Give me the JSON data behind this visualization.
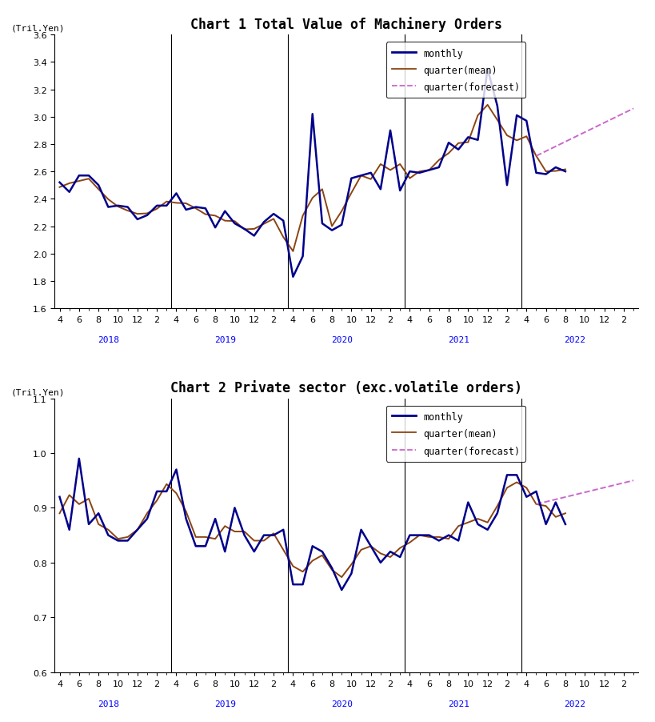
{
  "chart1_title": "Chart 1 Total Value of Machinery Orders",
  "chart2_title": "Chart 2 Private sector (exc.volatile orders)",
  "ylabel": "(Tril.Yen)",
  "chart1_ylim": [
    1.6,
    3.6
  ],
  "chart1_yticks": [
    1.6,
    1.8,
    2.0,
    2.2,
    2.4,
    2.6,
    2.8,
    3.0,
    3.2,
    3.4,
    3.6
  ],
  "chart2_ylim": [
    0.6,
    1.1
  ],
  "chart2_yticks": [
    0.6,
    0.7,
    0.8,
    0.9,
    1.0,
    1.1
  ],
  "monthly_color": "#00008B",
  "quarterly_color": "#8B4513",
  "forecast_color": "#CC66CC",
  "monthly_lw": 1.8,
  "quarterly_lw": 1.4,
  "forecast_lw": 1.4,
  "year_labels": [
    "2018",
    "2019",
    "2020",
    "2021",
    "2022"
  ],
  "chart1_monthly": [
    2.52,
    2.45,
    2.57,
    2.57,
    2.5,
    2.34,
    2.35,
    2.34,
    2.25,
    2.28,
    2.35,
    2.35,
    2.44,
    2.32,
    2.34,
    2.33,
    2.19,
    2.31,
    2.22,
    2.18,
    2.13,
    2.23,
    2.29,
    2.24,
    1.83,
    1.98,
    3.02,
    2.22,
    2.17,
    2.21,
    2.55,
    2.57,
    2.59,
    2.47,
    2.9,
    2.46,
    2.6,
    2.59,
    2.61,
    2.63,
    2.81,
    2.76,
    2.85,
    2.83,
    3.35,
    3.08,
    2.5,
    3.01,
    2.97,
    2.59,
    2.58,
    2.63,
    2.6
  ],
  "chart2_monthly": [
    0.92,
    0.86,
    0.99,
    0.87,
    0.89,
    0.85,
    0.84,
    0.84,
    0.86,
    0.88,
    0.93,
    0.93,
    0.97,
    0.88,
    0.83,
    0.83,
    0.88,
    0.82,
    0.9,
    0.85,
    0.82,
    0.85,
    0.85,
    0.86,
    0.76,
    0.76,
    0.83,
    0.82,
    0.79,
    0.75,
    0.78,
    0.86,
    0.83,
    0.8,
    0.82,
    0.81,
    0.85,
    0.85,
    0.85,
    0.84,
    0.85,
    0.84,
    0.91,
    0.87,
    0.86,
    0.89,
    0.96,
    0.96,
    0.92,
    0.93,
    0.87,
    0.91,
    0.87
  ],
  "background_color": "#FFFFFF",
  "title_fontsize": 12,
  "tick_fontsize": 8,
  "label_fontsize": 8,
  "legend_fontsize": 8.5
}
